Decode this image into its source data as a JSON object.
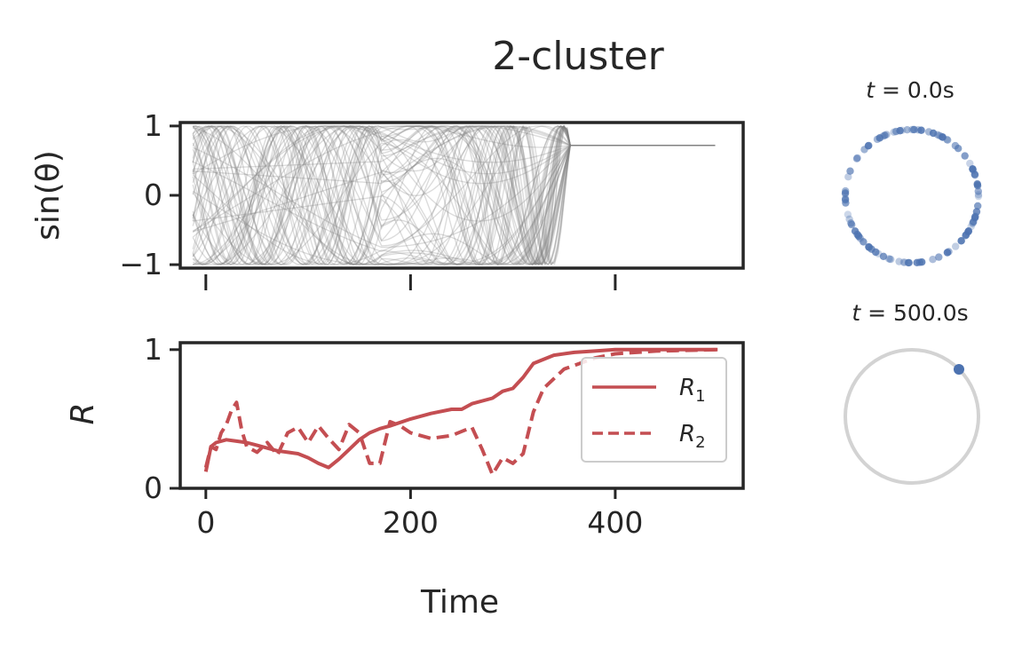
{
  "figure": {
    "title": "2-cluster"
  },
  "chart_data": [
    {
      "type": "line",
      "panel": "phases",
      "ylabel": "sin(θ)",
      "xlim": [
        -12,
        525
      ],
      "ylim": [
        -1.05,
        1.05
      ],
      "yticks": [
        1,
        0,
        -1
      ],
      "ytick_labels": [
        "1",
        "0",
        "−1"
      ],
      "xticks": [
        0,
        200,
        400
      ],
      "tick_labels_visible_x": false,
      "series_color": "#808080",
      "grid": false,
      "final_value": 0.72,
      "t_end": 500
    },
    {
      "type": "line",
      "panel": "order-parameter",
      "ylabel": "R",
      "xlabel": "Time",
      "xlim": [
        -25,
        525
      ],
      "ylim": [
        0,
        1.05
      ],
      "yticks": [
        1,
        0
      ],
      "ytick_labels": [
        "1",
        "0"
      ],
      "xticks": [
        0,
        200,
        400
      ],
      "xtick_labels": [
        "0",
        "200",
        "400"
      ],
      "legend_location": "right",
      "grid": false,
      "series": [
        {
          "name": "R1",
          "legend_main": "R",
          "legend_sub": "1",
          "style": "solid",
          "color": "#c44e52",
          "x": [
            0,
            5,
            10,
            20,
            30,
            40,
            50,
            60,
            70,
            80,
            90,
            100,
            110,
            120,
            130,
            140,
            150,
            160,
            170,
            180,
            200,
            220,
            240,
            250,
            260,
            280,
            290,
            300,
            310,
            320,
            340,
            360,
            380,
            400,
            440,
            500
          ],
          "y": [
            0.12,
            0.3,
            0.33,
            0.35,
            0.34,
            0.33,
            0.31,
            0.29,
            0.27,
            0.26,
            0.25,
            0.22,
            0.18,
            0.15,
            0.21,
            0.28,
            0.35,
            0.4,
            0.43,
            0.45,
            0.5,
            0.54,
            0.57,
            0.57,
            0.61,
            0.65,
            0.7,
            0.72,
            0.8,
            0.9,
            0.96,
            0.98,
            0.99,
            1.0,
            1.0,
            1.0
          ]
        },
        {
          "name": "R2",
          "legend_main": "R",
          "legend_sub": "2",
          "style": "dashed",
          "color": "#c44e52",
          "x": [
            0,
            5,
            10,
            15,
            20,
            25,
            30,
            35,
            40,
            50,
            60,
            70,
            80,
            90,
            100,
            110,
            120,
            130,
            140,
            150,
            160,
            170,
            180,
            190,
            200,
            220,
            240,
            260,
            270,
            280,
            290,
            300,
            310,
            320,
            330,
            350,
            380,
            400,
            440,
            500
          ],
          "y": [
            0.15,
            0.3,
            0.28,
            0.4,
            0.46,
            0.56,
            0.62,
            0.42,
            0.3,
            0.26,
            0.33,
            0.24,
            0.4,
            0.44,
            0.33,
            0.45,
            0.36,
            0.28,
            0.46,
            0.4,
            0.18,
            0.18,
            0.48,
            0.45,
            0.4,
            0.36,
            0.38,
            0.44,
            0.28,
            0.1,
            0.22,
            0.18,
            0.25,
            0.55,
            0.72,
            0.86,
            0.94,
            0.97,
            0.99,
            1.0
          ]
        }
      ]
    },
    {
      "type": "scatter",
      "panel": "unit-circle-initial",
      "title": "t = 0.0s",
      "title_var": "t",
      "title_rest": " = 0.0s",
      "description": "phases scattered around the unit circle"
    },
    {
      "type": "scatter",
      "panel": "unit-circle-final",
      "title": "t = 500.0s",
      "title_var": "t",
      "title_rest": " = 500.0s",
      "cluster_angle_deg": 45
    }
  ],
  "colors": {
    "axis": "#262626",
    "grey_trace": "#808080",
    "red": "#c44e52",
    "blue": "#4c72b0",
    "circle_ring": "#d3d3d3"
  }
}
